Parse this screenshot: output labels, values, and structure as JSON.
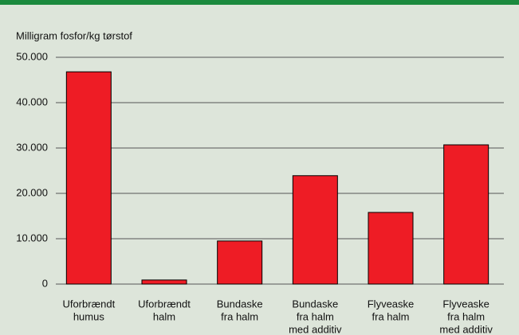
{
  "chart_data": {
    "type": "bar",
    "y_label": "Milligram fosfor/kg tørstof",
    "categories": [
      [
        "Uforbrændt",
        "humus"
      ],
      [
        "Uforbrændt",
        "halm"
      ],
      [
        "Bundaske",
        "fra halm"
      ],
      [
        "Bundaske",
        "fra halm",
        "med additiv"
      ],
      [
        "Flyveaske",
        "fra halm"
      ],
      [
        "Flyveaske",
        "fra halm",
        "med additiv"
      ]
    ],
    "values": [
      46800,
      900,
      9500,
      23900,
      15800,
      30700
    ],
    "color": "#ee1c25",
    "ylim": [
      0,
      50000
    ],
    "yticks": [
      0,
      {
        "value": 10000,
        "label": "10.000"
      },
      {
        "value": 20000,
        "label": "20.000"
      },
      {
        "value": 30000,
        "label": "30.000"
      },
      {
        "value": 40000,
        "label": "40.000"
      },
      {
        "value": 50000,
        "label": "50.000"
      }
    ],
    "grid": true
  }
}
